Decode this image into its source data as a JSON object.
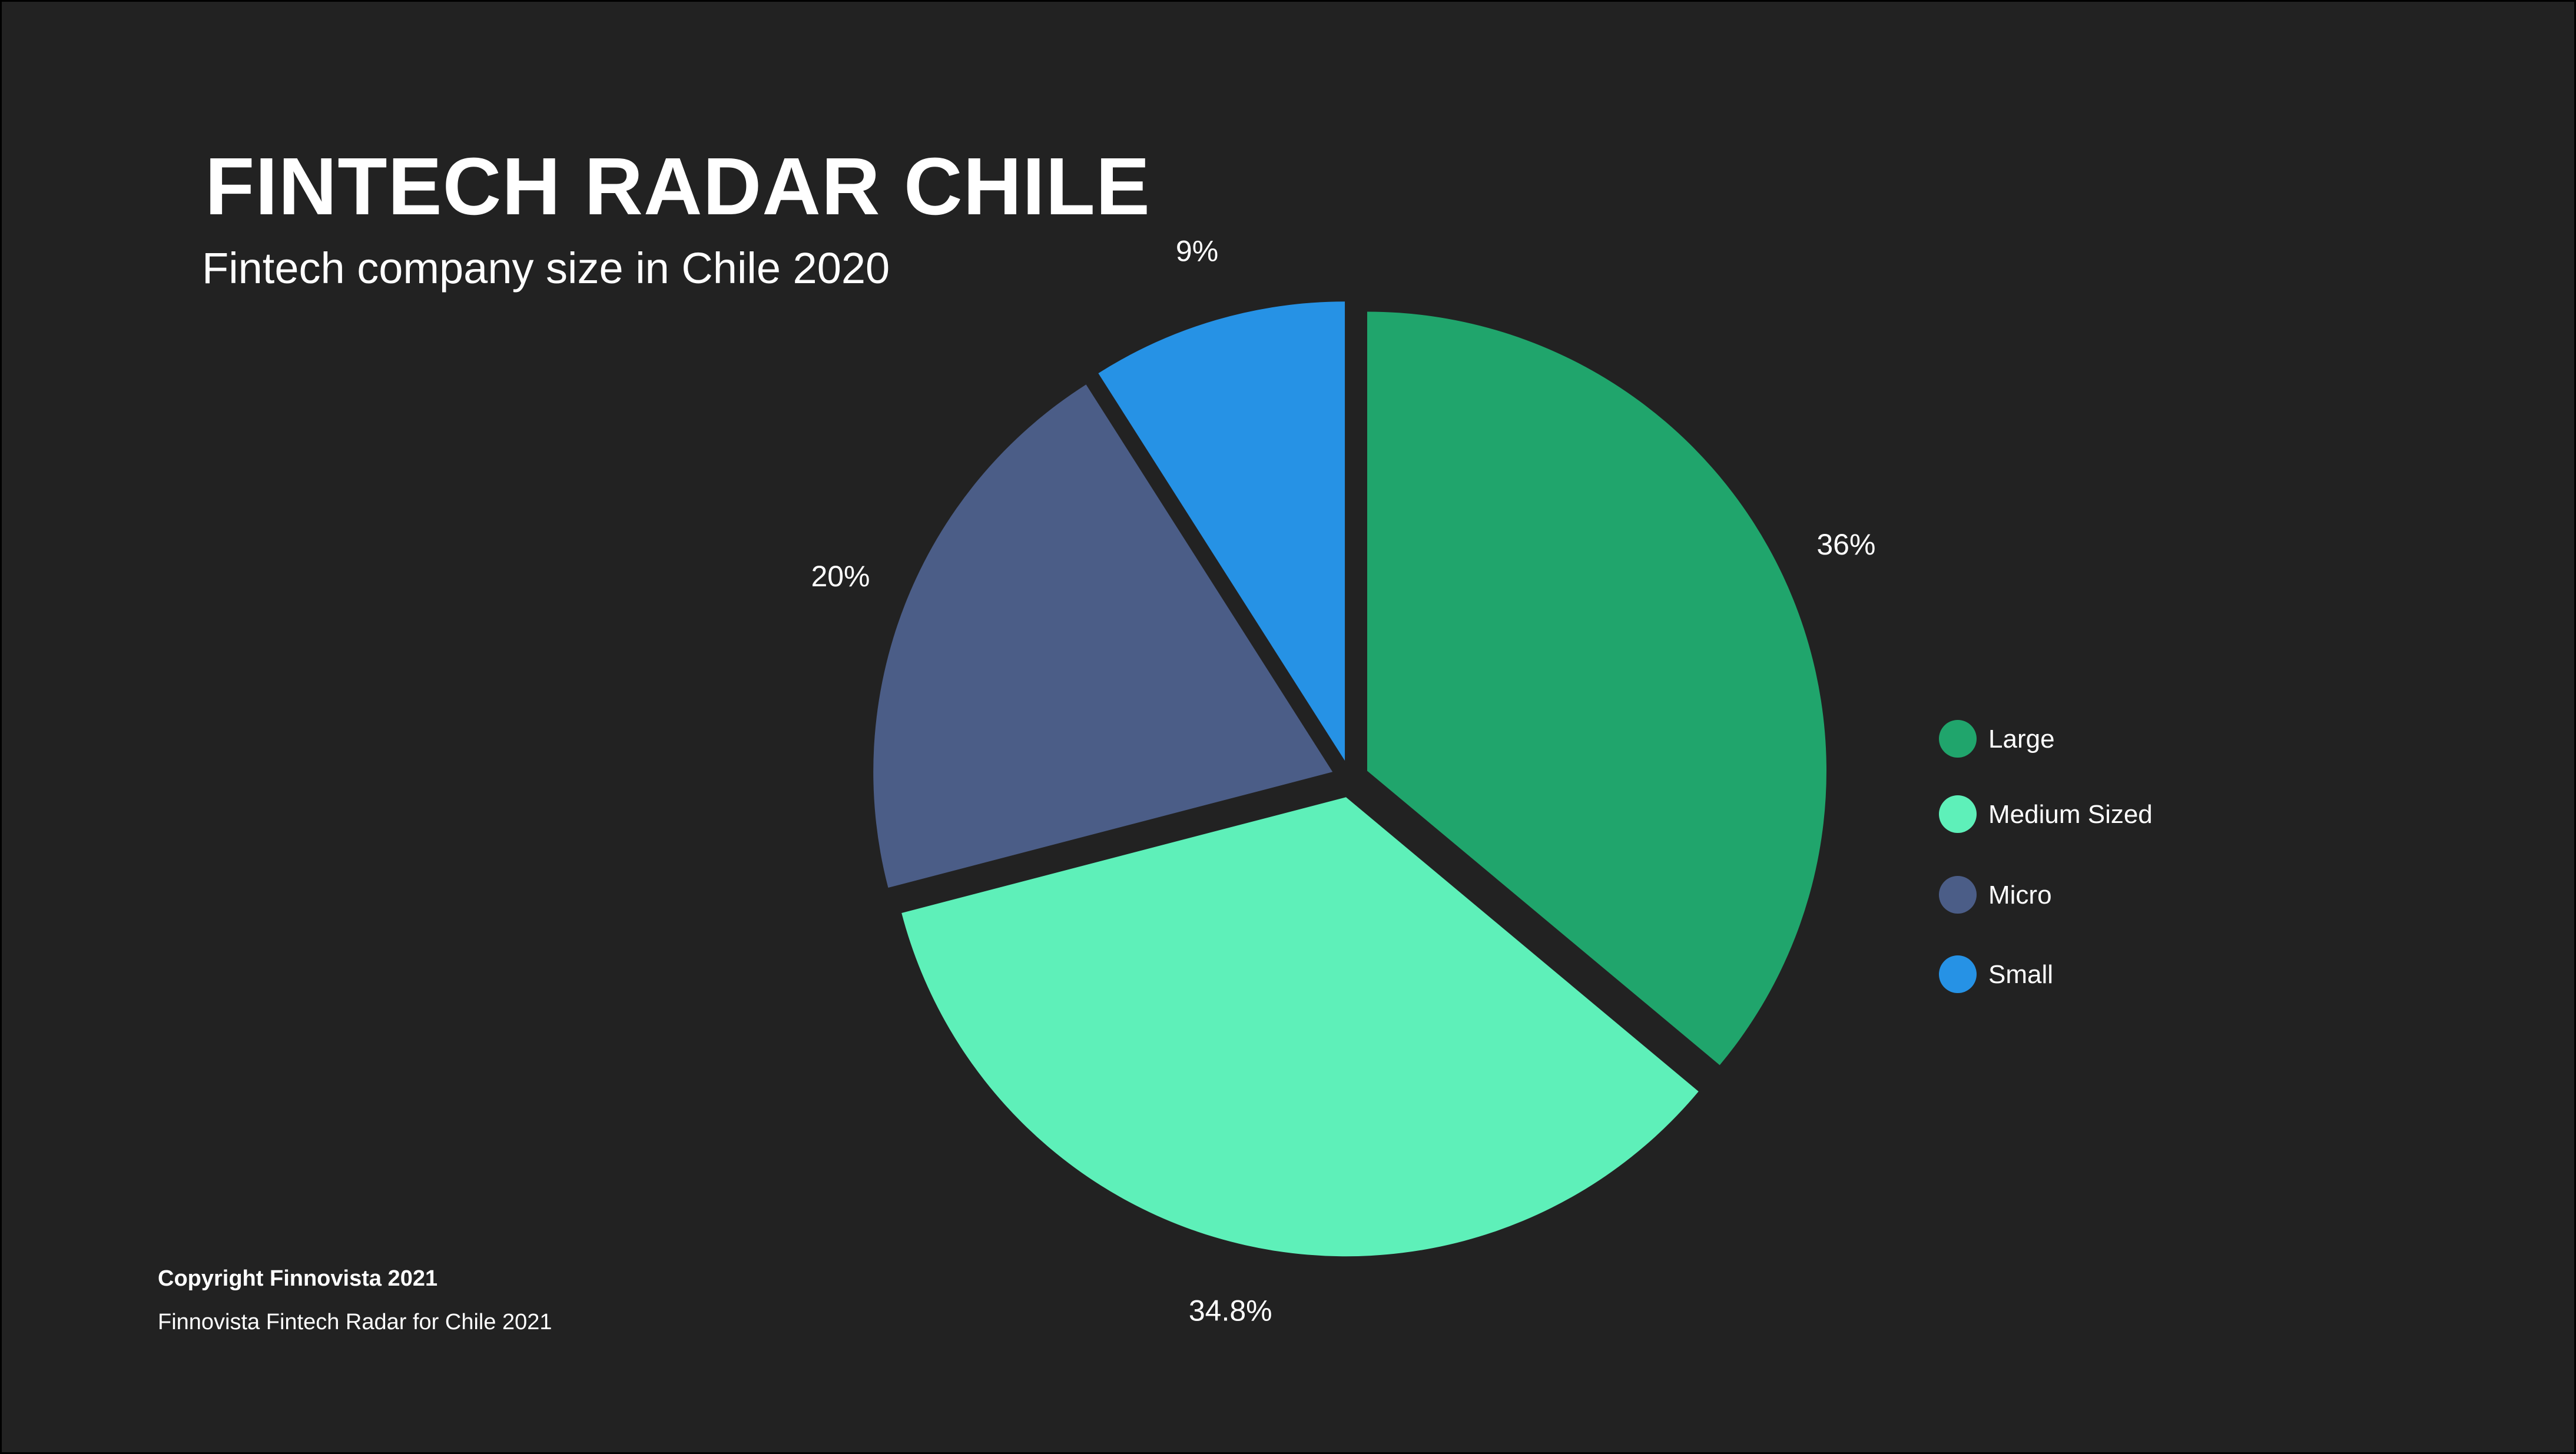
{
  "header": {
    "title": "FINTECH RADAR CHILE",
    "subtitle": "Fintech company size in Chile 2020"
  },
  "chart_data": {
    "type": "pie",
    "title": "FINTECH RADAR CHILE",
    "subtitle": "Fintech company size in Chile 2020",
    "legend_position": "right",
    "slices": [
      {
        "label": "Large",
        "value": 36,
        "display": "36%",
        "color": "#20a56c"
      },
      {
        "label": "Medium Sized",
        "value": 34.8,
        "display": "34.8%",
        "color": "#5ef0b9"
      },
      {
        "label": "Micro",
        "value": 20,
        "display": "20%",
        "color": "#4b5d87"
      },
      {
        "label": "Small",
        "value": 9,
        "display": "9%",
        "color": "#2692e5"
      }
    ]
  },
  "footer": {
    "copyright": "Copyright Finnovista 2021",
    "source": "Finnovista Fintech Radar for Chile 2021"
  }
}
